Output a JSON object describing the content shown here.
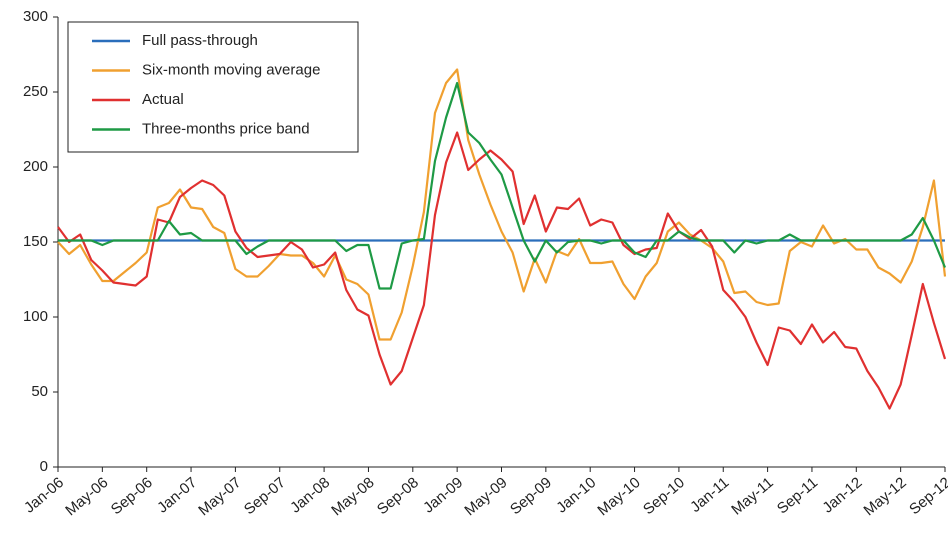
{
  "chart_data": {
    "type": "line",
    "categories": [
      "Jan-06",
      null,
      null,
      null,
      "May-06",
      null,
      null,
      null,
      "Sep-06",
      null,
      null,
      null,
      "Jan-07",
      null,
      null,
      null,
      "May-07",
      null,
      null,
      null,
      "Sep-07",
      null,
      null,
      null,
      "Jan-08",
      null,
      null,
      null,
      "May-08",
      null,
      null,
      null,
      "Sep-08",
      null,
      null,
      null,
      "Jan-09",
      null,
      null,
      null,
      "May-09",
      null,
      null,
      null,
      "Sep-09",
      null,
      null,
      null,
      "Jan-10",
      null,
      null,
      null,
      "May-10",
      null,
      null,
      null,
      "Sep-10",
      null,
      null,
      null,
      "Jan-11",
      null,
      null,
      null,
      "May-11",
      null,
      null,
      null,
      "Sep-11",
      null,
      null,
      null,
      "Jan-12",
      null,
      null,
      null,
      "May-12",
      null,
      null,
      null,
      "Sep-12"
    ],
    "series": [
      {
        "name": "Full pass-through",
        "color": "#2a6ebb",
        "values": [
          151,
          151,
          151,
          151,
          151,
          151,
          151,
          151,
          151,
          151,
          151,
          151,
          151,
          151,
          151,
          151,
          151,
          151,
          151,
          151,
          151,
          151,
          151,
          151,
          151,
          151,
          151,
          151,
          151,
          151,
          151,
          151,
          151,
          151,
          151,
          151,
          151,
          151,
          151,
          151,
          151,
          151,
          151,
          151,
          151,
          151,
          151,
          151,
          151,
          151,
          151,
          151,
          151,
          151,
          151,
          151,
          151,
          151,
          151,
          151,
          151,
          151,
          151,
          151,
          151,
          151,
          151,
          151,
          151,
          151,
          151,
          151,
          151,
          151,
          151,
          151,
          151,
          151,
          151,
          151,
          151
        ]
      },
      {
        "name": "Six-month moving average",
        "color": "#f0a030",
        "values": [
          150,
          142,
          148,
          135,
          124,
          124,
          130,
          136,
          143,
          173,
          176,
          185,
          173,
          172,
          160,
          156,
          132,
          127,
          127,
          134,
          142,
          141,
          141,
          136,
          127,
          141,
          125,
          122,
          115,
          85,
          85,
          103,
          134,
          170,
          236,
          256,
          265,
          218,
          195,
          175,
          157,
          143,
          117,
          139,
          123,
          144,
          141,
          152,
          136,
          136,
          137,
          122,
          112,
          127,
          136,
          157,
          163,
          155,
          151,
          146,
          137,
          116,
          117,
          110,
          108,
          109,
          144,
          150,
          147,
          161,
          149,
          152,
          145,
          145,
          133,
          129,
          123,
          137,
          160,
          191,
          127
        ]
      },
      {
        "name": "Actual",
        "color": "#e03030",
        "values": [
          160,
          150,
          155,
          138,
          131,
          123,
          122,
          121,
          127,
          165,
          163,
          180,
          186,
          191,
          188,
          181,
          157,
          146,
          140,
          141,
          142,
          150,
          145,
          133,
          135,
          143,
          118,
          105,
          101,
          75,
          55,
          64,
          86,
          108,
          168,
          203,
          223,
          198,
          205,
          211,
          205,
          197,
          162,
          181,
          157,
          173,
          172,
          179,
          161,
          165,
          163,
          148,
          142,
          145,
          146,
          169,
          157,
          152,
          158,
          147,
          118,
          110,
          100,
          83,
          68,
          93,
          91,
          82,
          95,
          83,
          90,
          80,
          79,
          64,
          53,
          39,
          55,
          88,
          122,
          96,
          72
        ]
      },
      {
        "name": "Three-months price band",
        "color": "#1e9a45",
        "values": [
          151,
          151,
          151,
          151,
          148,
          151,
          151,
          151,
          151,
          151,
          164,
          155,
          156,
          151,
          151,
          151,
          151,
          142,
          147,
          151,
          151,
          151,
          151,
          151,
          151,
          151,
          144,
          148,
          148,
          119,
          119,
          149,
          151,
          152,
          204,
          233,
          256,
          223,
          216,
          205,
          195,
          173,
          151,
          137,
          151,
          143,
          150,
          151,
          151,
          149,
          151,
          151,
          143,
          140,
          151,
          151,
          157,
          153,
          151,
          151,
          151,
          143,
          151,
          149,
          151,
          151,
          155,
          151,
          151,
          151,
          151,
          151,
          151,
          151,
          151,
          151,
          151,
          155,
          166,
          151,
          133
        ]
      }
    ],
    "ylim": [
      0,
      300
    ],
    "yticks": [
      0,
      50,
      100,
      150,
      200,
      250,
      300
    ],
    "grid": false,
    "legend": "top-left"
  }
}
